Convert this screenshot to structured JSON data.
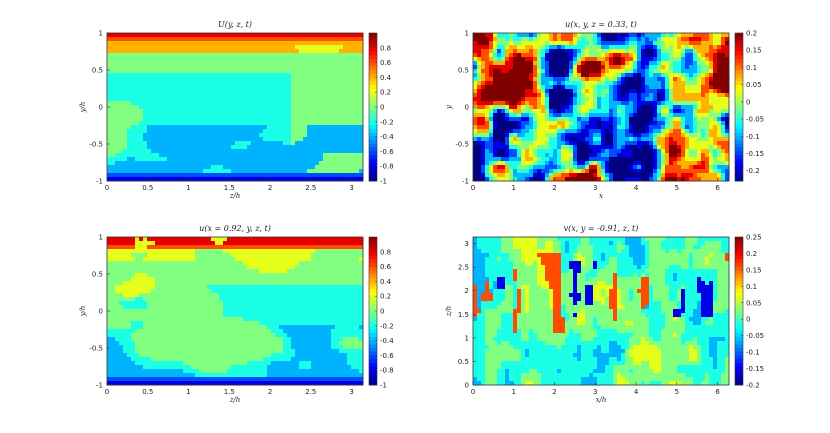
{
  "chart_data": [
    {
      "type": "heatmap",
      "title": "U(y, z, t)",
      "xlabel": "z/h",
      "ylabel": "y/h",
      "xlim": [
        0,
        3.14
      ],
      "ylim": [
        -1,
        1
      ],
      "clim": [
        -1,
        1
      ],
      "xticks": [
        "0",
        "0.5",
        "1",
        "1.5",
        "2",
        "2.5",
        "3"
      ],
      "yticks": [
        "-1",
        "-0.5",
        "0",
        "0.5",
        "1"
      ],
      "cbar_ticks": [
        "-1",
        "-0.8",
        "-0.6",
        "-0.4",
        "-0.2",
        "0",
        "0.2",
        "0.4",
        "0.6",
        "0.8"
      ],
      "colormap": "jet",
      "pattern": "wall_shear_mean"
    },
    {
      "type": "heatmap",
      "title": "u(x, y, z = 0.33, t)",
      "xlabel": "x",
      "ylabel": "y",
      "xlim": [
        0,
        6.28
      ],
      "ylim": [
        -1,
        1
      ],
      "clim": [
        -0.23,
        0.2
      ],
      "xticks": [
        "0",
        "1",
        "2",
        "3",
        "4",
        "5",
        "6"
      ],
      "yticks": [
        "-1",
        "-0.5",
        "0",
        "0.5",
        "1"
      ],
      "cbar_ticks": [
        "-0.2",
        "-0.15",
        "-0.1",
        "-0.05",
        "0",
        "0.05",
        "0.1",
        "0.15",
        "0.2"
      ],
      "colormap": "jet",
      "pattern": "turbulent_blobs"
    },
    {
      "type": "heatmap",
      "title": "u(x = 0.92, y, z, t)",
      "xlabel": "z/h",
      "ylabel": "y/h",
      "xlim": [
        0,
        3.14
      ],
      "ylim": [
        -1,
        1
      ],
      "clim": [
        -1,
        1
      ],
      "xticks": [
        "0",
        "0.5",
        "1",
        "1.5",
        "2",
        "2.5",
        "3"
      ],
      "yticks": [
        "-1",
        "-0.5",
        "0",
        "0.5",
        "1"
      ],
      "cbar_ticks": [
        "-1",
        "-0.8",
        "-0.6",
        "-0.4",
        "-0.2",
        "0",
        "0.2",
        "0.4",
        "0.6",
        "0.8"
      ],
      "colormap": "jet",
      "pattern": "wall_shear_instant"
    },
    {
      "type": "heatmap",
      "title": "v(x, y = -0.91, z, t)",
      "xlabel": "x/h",
      "ylabel": "z/h",
      "xlim": [
        0,
        6.28
      ],
      "ylim": [
        0,
        3.14
      ],
      "clim": [
        -0.2,
        0.25
      ],
      "xticks": [
        "0",
        "1",
        "2",
        "3",
        "4",
        "5",
        "6"
      ],
      "yticks": [
        "0",
        "0.5",
        "1",
        "1.5",
        "2",
        "2.5",
        "3"
      ],
      "cbar_ticks": [
        "-0.2",
        "-0.15",
        "-0.1",
        "-0.05",
        "0",
        "0.05",
        "0.1",
        "0.15",
        "0.2",
        "0.25"
      ],
      "colormap": "jet",
      "pattern": "streaks"
    }
  ]
}
